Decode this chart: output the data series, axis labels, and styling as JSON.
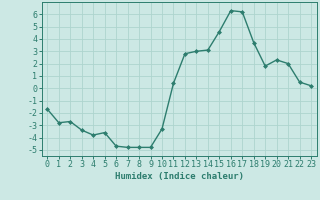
{
  "x": [
    0,
    1,
    2,
    3,
    4,
    5,
    6,
    7,
    8,
    9,
    10,
    11,
    12,
    13,
    14,
    15,
    16,
    17,
    18,
    19,
    20,
    21,
    22,
    23
  ],
  "y": [
    -1.7,
    -2.8,
    -2.7,
    -3.4,
    -3.8,
    -3.6,
    -4.7,
    -4.8,
    -4.8,
    -4.8,
    -3.3,
    0.4,
    2.8,
    3.0,
    3.1,
    4.6,
    6.3,
    6.2,
    3.7,
    1.8,
    2.3,
    2.0,
    0.5,
    0.2
  ],
  "line_color": "#2d7d6e",
  "marker": "D",
  "marker_size": 2.0,
  "bg_color": "#cce8e4",
  "grid_color": "#aed4ce",
  "xlabel": "Humidex (Indice chaleur)",
  "xlim": [
    -0.5,
    23.5
  ],
  "ylim": [
    -5.5,
    7.0
  ],
  "yticks": [
    -5,
    -4,
    -3,
    -2,
    -1,
    0,
    1,
    2,
    3,
    4,
    5,
    6
  ],
  "xticks": [
    0,
    1,
    2,
    3,
    4,
    5,
    6,
    7,
    8,
    9,
    10,
    11,
    12,
    13,
    14,
    15,
    16,
    17,
    18,
    19,
    20,
    21,
    22,
    23
  ],
  "xlabel_fontsize": 6.5,
  "tick_fontsize": 6.0,
  "line_width": 1.0
}
